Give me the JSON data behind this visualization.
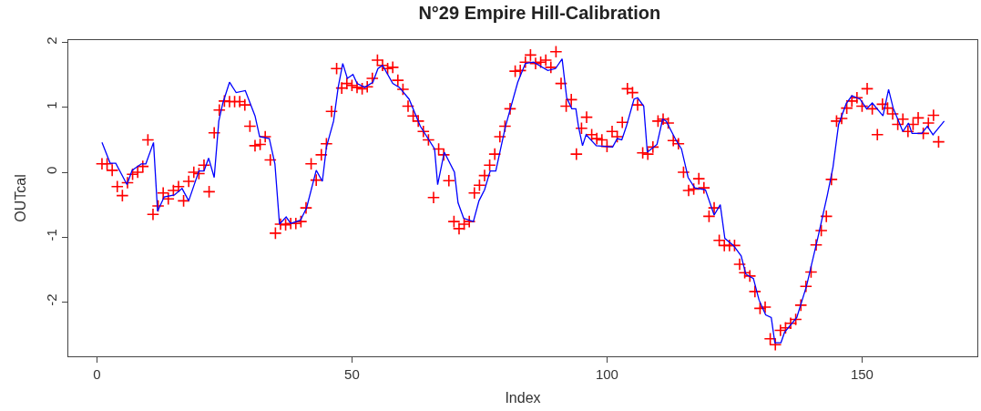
{
  "chart_data": {
    "type": "scatter",
    "title": "N°29 Empire Hill-Calibration",
    "xlabel": "Index",
    "ylabel": "OUTcal",
    "xlim": [
      -5.6,
      172.6
    ],
    "xticks": [
      0,
      50,
      100,
      150
    ],
    "ylim": [
      -2.84,
      2.04
    ],
    "yticks": [
      -2,
      -1,
      0,
      1,
      2
    ],
    "series": [
      {
        "marker": "cross",
        "color": "#ff0000",
        "x": [
          1,
          2,
          3,
          4,
          5,
          6,
          7,
          8,
          9,
          10,
          11,
          12,
          13,
          14,
          15,
          16,
          17,
          18,
          19,
          20,
          21,
          22,
          23,
          24,
          25,
          26,
          27,
          28,
          29,
          30,
          31,
          32,
          33,
          34,
          35,
          36,
          37,
          38,
          39,
          40,
          41,
          42,
          43,
          44,
          45,
          46,
          47,
          48,
          49,
          50,
          51,
          52,
          53,
          54,
          55,
          56,
          57,
          58,
          59,
          60,
          61,
          62,
          63,
          64,
          65,
          66,
          67,
          68,
          69,
          70,
          71,
          72,
          73,
          74,
          75,
          76,
          77,
          78,
          79,
          80,
          81,
          82,
          83,
          84,
          85,
          86,
          87,
          88,
          89,
          90,
          91,
          92,
          93,
          94,
          95,
          96,
          97,
          98,
          99,
          100,
          101,
          102,
          103,
          104,
          105,
          106,
          107,
          108,
          109,
          110,
          111,
          112,
          113,
          114,
          115,
          116,
          117,
          118,
          119,
          120,
          121,
          122,
          123,
          124,
          125,
          126,
          127,
          128,
          129,
          130,
          131,
          132,
          133,
          134,
          135,
          136,
          137,
          138,
          139,
          140,
          141,
          142,
          143,
          144,
          145,
          146,
          147,
          148,
          149,
          150,
          151,
          152,
          153,
          154,
          155,
          156,
          157,
          158,
          159,
          160,
          161,
          162,
          163,
          164,
          165
        ],
        "values": [
          0.13,
          0.13,
          0.03,
          -0.22,
          -0.36,
          -0.16,
          -0.03,
          0.0,
          0.09,
          0.5,
          -0.65,
          -0.52,
          -0.32,
          -0.41,
          -0.28,
          -0.22,
          -0.44,
          -0.14,
          0.0,
          -0.02,
          0.11,
          -0.3,
          0.61,
          0.96,
          1.1,
          1.09,
          1.09,
          1.09,
          1.04,
          0.71,
          0.41,
          0.43,
          0.55,
          0.19,
          -0.94,
          -0.8,
          -0.81,
          -0.79,
          -0.79,
          -0.76,
          -0.55,
          0.13,
          -0.12,
          0.27,
          0.44,
          0.94,
          1.6,
          1.3,
          1.37,
          1.34,
          1.31,
          1.29,
          1.32,
          1.45,
          1.73,
          1.65,
          1.6,
          1.62,
          1.42,
          1.28,
          1.02,
          0.87,
          0.79,
          0.63,
          0.5,
          -0.39,
          0.36,
          0.27,
          -0.13,
          -0.76,
          -0.87,
          -0.8,
          -0.76,
          -0.32,
          -0.2,
          -0.05,
          0.11,
          0.28,
          0.55,
          0.71,
          0.98,
          1.56,
          1.57,
          1.7,
          1.81,
          1.68,
          1.7,
          1.73,
          1.62,
          1.86,
          1.37,
          1.02,
          1.12,
          0.28,
          0.68,
          0.85,
          0.58,
          0.52,
          0.5,
          0.4,
          0.63,
          0.55,
          0.77,
          1.29,
          1.23,
          1.04,
          0.3,
          0.28,
          0.39,
          0.79,
          0.82,
          0.76,
          0.49,
          0.44,
          0.0,
          -0.28,
          -0.26,
          -0.1,
          -0.24,
          -0.68,
          -0.55,
          -1.05,
          -1.13,
          -1.13,
          -1.13,
          -1.42,
          -1.55,
          -1.6,
          -1.84,
          -2.1,
          -2.08,
          -2.57,
          -2.66,
          -2.44,
          -2.4,
          -2.33,
          -2.27,
          -2.05,
          -1.76,
          -1.54,
          -1.12,
          -0.9,
          -0.68,
          -0.11,
          0.79,
          0.83,
          0.99,
          1.1,
          1.15,
          1.02,
          1.29,
          0.98,
          0.58,
          1.05,
          0.99,
          0.9,
          0.74,
          0.82,
          0.63,
          0.74,
          0.84,
          0.6,
          0.76,
          0.88,
          0.47
        ]
      },
      {
        "type": "line",
        "color": "#0000ff",
        "x": [
          1,
          2.6,
          3.7,
          5.9,
          6.9,
          8.7,
          9.6,
          11.1,
          11.9,
          13.2,
          15.2,
          16.7,
          18,
          20,
          21,
          21.9,
          23,
          23.9,
          24.7,
          26,
          27.3,
          29.1,
          31,
          31.9,
          33.8,
          34.9,
          35.8,
          37.1,
          38,
          39.9,
          41.1,
          43,
          44.2,
          45,
          46.4,
          47.3,
          48.2,
          49.1,
          50.2,
          51,
          52.5,
          54.1,
          55.1,
          56,
          58,
          59.3,
          61.2,
          63.4,
          66.2,
          66.8,
          68.1,
          70.1,
          70.8,
          71.9,
          73.8,
          74.9,
          76,
          77.1,
          78.2,
          80.1,
          82.5,
          84,
          85.6,
          88.4,
          89.9,
          91.2,
          92.1,
          93.1,
          93.9,
          94.4,
          95.2,
          95.9,
          97.9,
          101.1,
          102,
          102.9,
          103.8,
          105.3,
          106,
          107.2,
          107.9,
          109.8,
          110.9,
          111.6,
          113.5,
          114.6,
          115.9,
          117.2,
          119.3,
          121,
          122.2,
          123.1,
          124.8,
          126.3,
          127.2,
          128.7,
          129.8,
          131.1,
          132.2,
          132.9,
          134.1,
          134.8,
          137.2,
          139.1,
          141.3,
          143.2,
          144.3,
          145.4,
          146.9,
          148,
          149.6,
          150.9,
          152,
          154.1,
          155.2,
          156.1,
          158,
          159.1,
          159.8,
          161.7,
          162.8,
          163.9,
          166.1
        ],
        "values": [
          0.46,
          0.14,
          0.14,
          -0.19,
          0.03,
          0.13,
          0.13,
          0.46,
          -0.6,
          -0.38,
          -0.35,
          -0.25,
          -0.44,
          0.02,
          0.02,
          0.22,
          -0.08,
          0.79,
          1.07,
          1.39,
          1.23,
          1.26,
          0.87,
          0.55,
          0.52,
          0.13,
          -0.8,
          -0.69,
          -0.79,
          -0.74,
          -0.55,
          0.03,
          -0.14,
          0.39,
          0.79,
          1.31,
          1.68,
          1.45,
          1.51,
          1.37,
          1.31,
          1.39,
          1.6,
          1.65,
          1.37,
          1.31,
          1.13,
          0.71,
          0.36,
          -0.19,
          0.31,
          0.0,
          -0.47,
          -0.71,
          -0.76,
          -0.44,
          -0.27,
          0.02,
          0.02,
          0.71,
          1.39,
          1.68,
          1.7,
          1.57,
          1.6,
          1.75,
          1.15,
          0.98,
          0.98,
          0.71,
          0.41,
          0.58,
          0.41,
          0.39,
          0.52,
          0.5,
          0.71,
          1.13,
          1.15,
          1.02,
          0.31,
          0.43,
          0.82,
          0.79,
          0.5,
          0.36,
          -0.08,
          -0.24,
          -0.27,
          -0.66,
          -0.5,
          -1.02,
          -1.13,
          -1.29,
          -1.57,
          -1.64,
          -1.97,
          -2.2,
          -2.24,
          -2.63,
          -2.63,
          -2.47,
          -2.24,
          -1.76,
          -1.02,
          -0.35,
          0.08,
          0.74,
          1.06,
          1.18,
          1.13,
          0.98,
          1.07,
          0.87,
          1.28,
          0.99,
          0.63,
          0.76,
          0.6,
          0.6,
          0.71,
          0.58,
          0.79
        ]
      }
    ]
  }
}
